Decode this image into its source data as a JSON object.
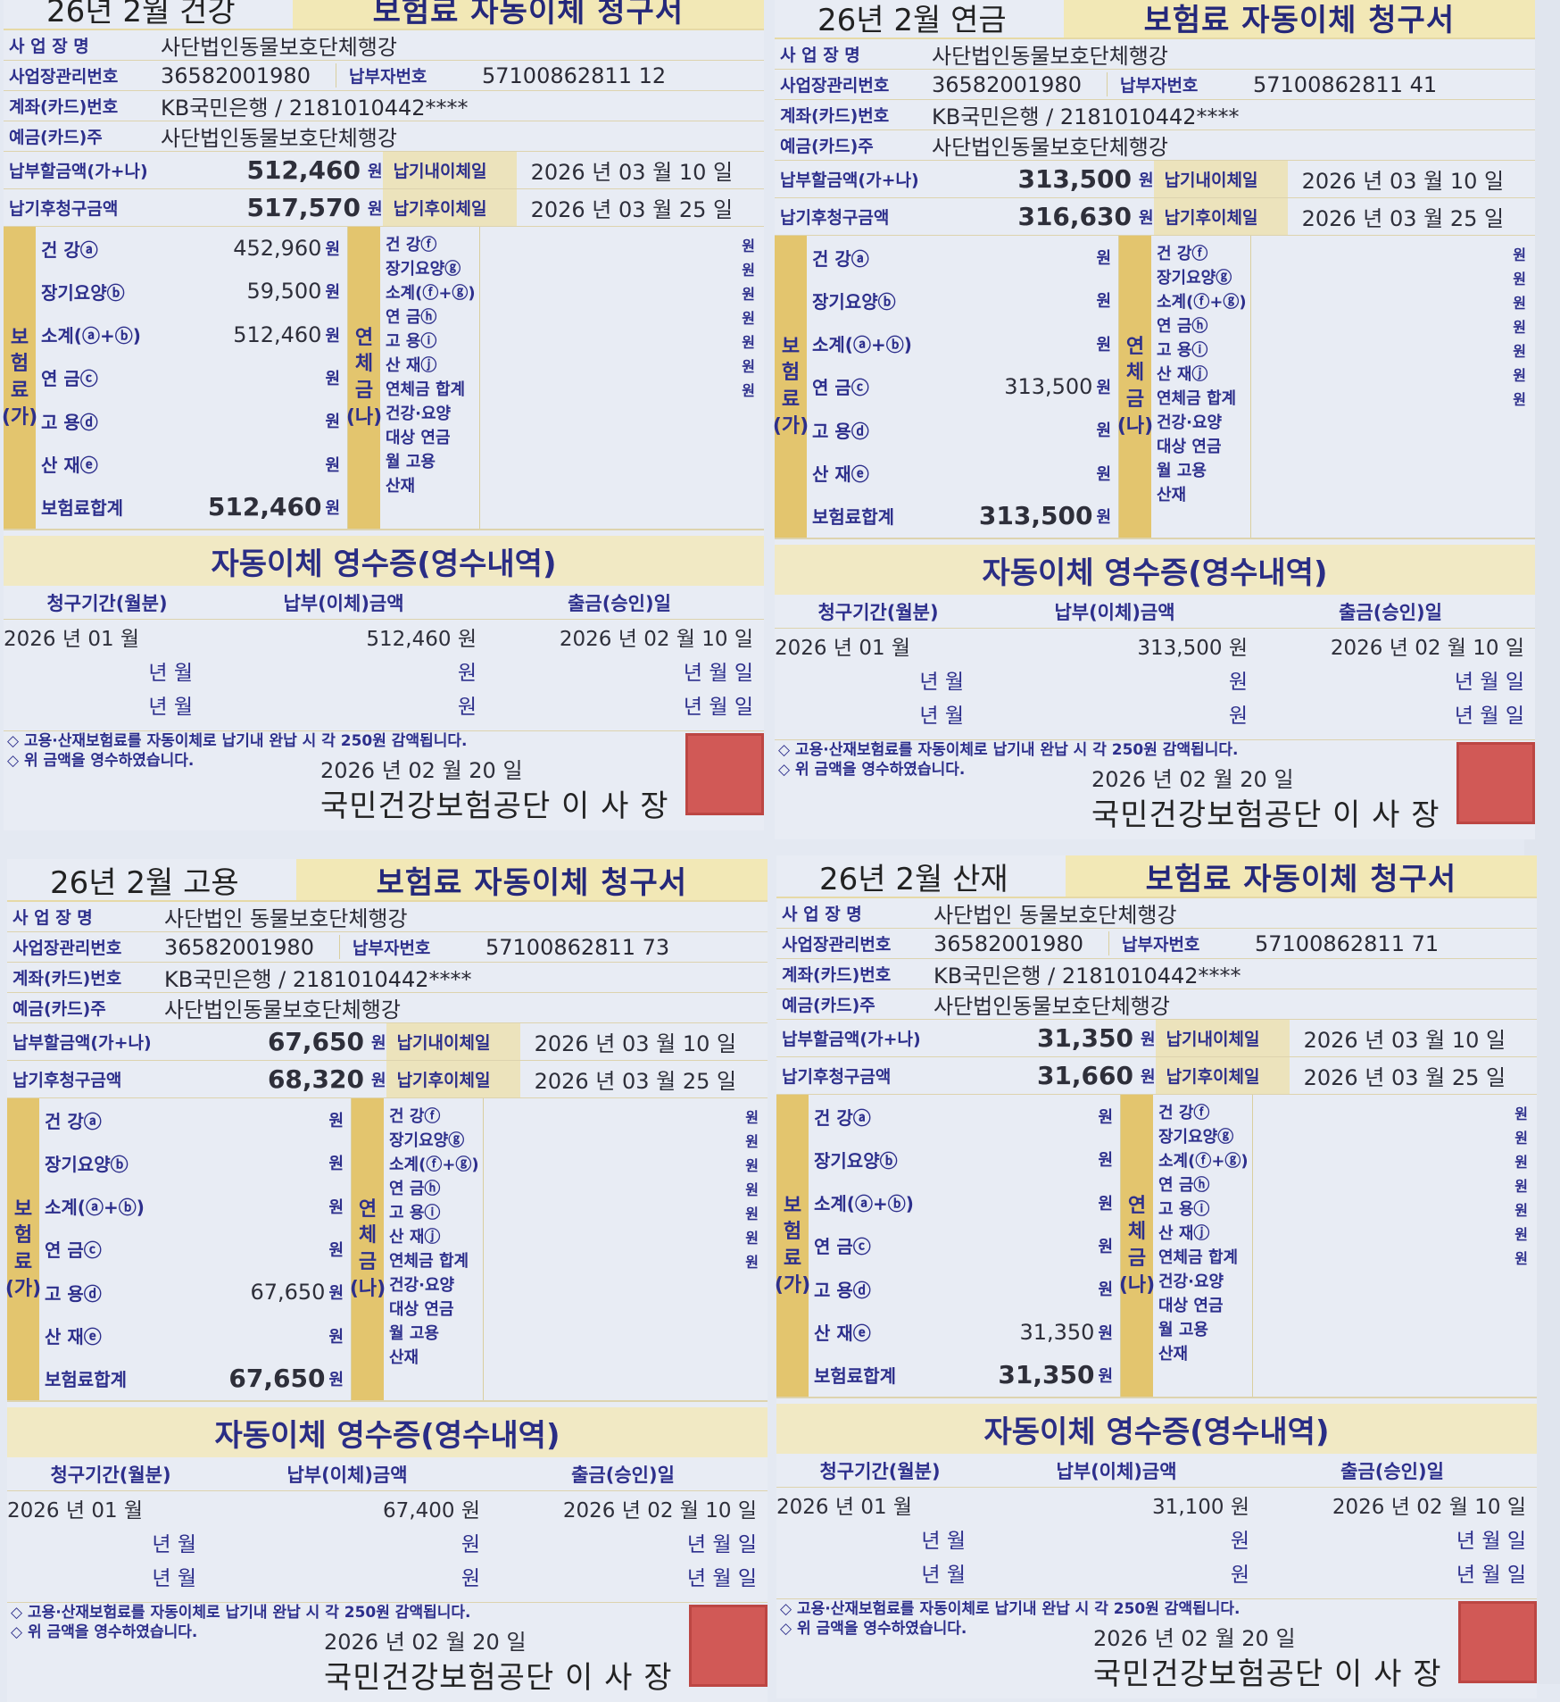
{
  "labels": {
    "business_name": "사 업 장 명",
    "mgmt_no": "사업장관리번호",
    "payer_no": "납부자번호",
    "account": "계좌(카드)번호",
    "depositor": "예금(카드)주",
    "amount_due": "납부할금액(가+나)",
    "due_date": "납기내이체일",
    "after_amount": "납기후청구금액",
    "after_date": "납기후이체일",
    "unit_won": "원",
    "ins_group": [
      "보",
      "험",
      "료",
      "(가)"
    ],
    "ins_items": [
      "건 강ⓐ",
      "장기요양ⓑ",
      "소계(ⓐ+ⓑ)",
      "연 금ⓒ",
      "고 용ⓓ",
      "산 재ⓔ",
      "보험료합계"
    ],
    "late_group": [
      "연",
      "체",
      "금",
      "(나)"
    ],
    "late_items": [
      "건 강ⓕ",
      "장기요양ⓖ",
      "소계(ⓕ+ⓖ)",
      "연 금ⓗ",
      "고 용ⓘ",
      "산 재ⓙ",
      "연체금 합계",
      "건강·요양",
      "대상 연금",
      "월 고용",
      "산재"
    ],
    "receipt_title": "자동이체 영수증(영수내역)",
    "receipt_headers": [
      "청구기간(월분)",
      "납부(이체)금액",
      "출금(승인)일"
    ],
    "empty_period": "년 월",
    "empty_amount": "원",
    "empty_date": "년 월 일",
    "note1": "◇ 고용·산재보험료를 자동이체로 납기내 완납 시 각 250원 감액됩니다.",
    "note2": "◇ 위 금액을 영수하였습니다.",
    "issue_date": "2026 년 02 월 20 일",
    "issuer": "국민건강보험공단 이 사 장",
    "form_title": "보험료 자동이체 청구서"
  },
  "panels": [
    {
      "title": "26년 2월 건강",
      "business_name": "사단법인동물보호단체행강",
      "mgmt_no": "36582001980",
      "payer_no": "57100862811 12",
      "account": "KB국민은행 / 2181010442****",
      "depositor": "사단법인동물보호단체행강",
      "amount_due": "512,460",
      "due_date": "2026 년 03 월 10 일",
      "after_amount": "517,570",
      "after_date": "2026 년 03 월 25 일",
      "items": [
        "452,960",
        "59,500",
        "512,460",
        "",
        "",
        "",
        "512,460"
      ],
      "receipt": {
        "period": "2026 년 01 월",
        "amount": "512,460 원",
        "date": "2026 년 02 월 10 일"
      }
    },
    {
      "title": "26년 2월 연금",
      "business_name": "사단법인동물보호단체행강",
      "mgmt_no": "36582001980",
      "payer_no": "57100862811 41",
      "account": "KB국민은행 / 2181010442****",
      "depositor": "사단법인동물보호단체행강",
      "amount_due": "313,500",
      "due_date": "2026 년 03 월 10 일",
      "after_amount": "316,630",
      "after_date": "2026 년 03 월 25 일",
      "items": [
        "",
        "",
        "",
        "313,500",
        "",
        "",
        "313,500"
      ],
      "receipt": {
        "period": "2026 년 01 월",
        "amount": "313,500 원",
        "date": "2026 년 02 월 10 일"
      }
    },
    {
      "title": "26년 2월 고용",
      "business_name": "사단법인 동물보호단체행강",
      "mgmt_no": "36582001980",
      "payer_no": "57100862811 73",
      "account": "KB국민은행 / 2181010442****",
      "depositor": "사단법인동물보호단체행강",
      "amount_due": "67,650",
      "due_date": "2026 년 03 월 10 일",
      "after_amount": "68,320",
      "after_date": "2026 년 03 월 25 일",
      "items": [
        "",
        "",
        "",
        "",
        "67,650",
        "",
        "67,650"
      ],
      "receipt": {
        "period": "2026 년 01 월",
        "amount": "67,400 원",
        "date": "2026 년 02 월 10 일"
      }
    },
    {
      "title": "26년 2월 산재",
      "business_name": "사단법인 동물보호단체행강",
      "mgmt_no": "36582001980",
      "payer_no": "57100862811 71",
      "account": "KB국민은행 / 2181010442****",
      "depositor": "사단법인동물보호단체행강",
      "amount_due": "31,350",
      "due_date": "2026 년 03 월 10 일",
      "after_amount": "31,660",
      "after_date": "2026 년 03 월 25 일",
      "items": [
        "",
        "",
        "",
        "",
        "",
        "31,350",
        "31,350"
      ],
      "receipt": {
        "period": "2026 년 01 월",
        "amount": "31,100 원",
        "date": "2026 년 02 월 10 일"
      }
    }
  ],
  "colors": {
    "paper": "#e8ecf4",
    "yellow": "#f2e8b6",
    "gold": "#e3c56e",
    "ink_blue": "#2d2f8c",
    "seal_red": "#cf4a45"
  }
}
